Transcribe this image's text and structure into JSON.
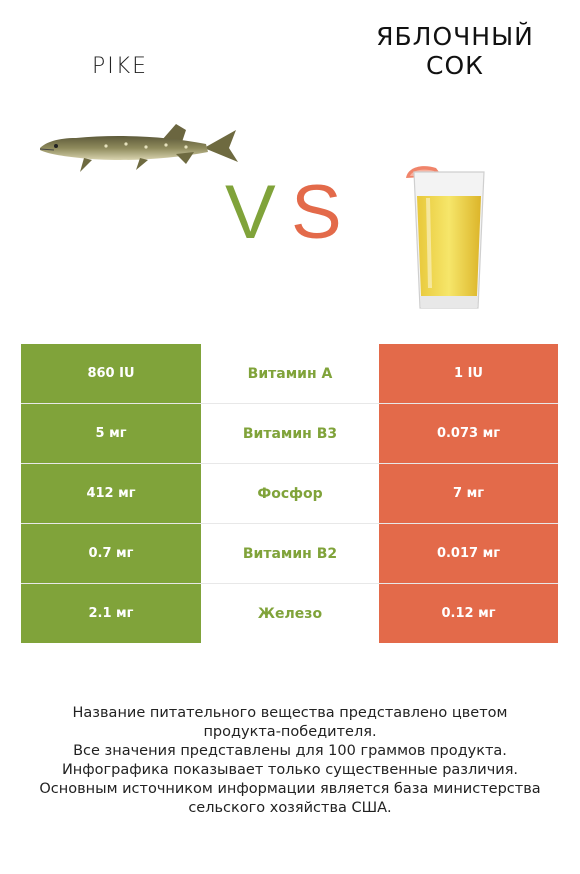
{
  "header": {
    "left_name": "PIKE",
    "right_name_line1": "ЯБЛОЧНЫЙ",
    "right_name_line2": "СОК",
    "vs_v": "V",
    "vs_s": "S"
  },
  "colors": {
    "left": "#80a33a",
    "right": "#e36a4a"
  },
  "images": {
    "left": "pike-fish-image",
    "right": "apple-juice-glass-image"
  },
  "table": {
    "rows": [
      {
        "left": "860 IU",
        "nutrient": "Витамин A",
        "right": "1 IU"
      },
      {
        "left": "5 мг",
        "nutrient": "Витамин B3",
        "right": "0.073 мг"
      },
      {
        "left": "412 мг",
        "nutrient": "Фосфор",
        "right": "7 мг"
      },
      {
        "left": "0.7 мг",
        "nutrient": "Витамин B2",
        "right": "0.017 мг"
      },
      {
        "left": "2.1 мг",
        "nutrient": "Железо",
        "right": "0.12 мг"
      }
    ]
  },
  "footer": {
    "line1": "Название питательного вещества представлено цветом",
    "line2": "продукта-победителя.",
    "line3": "Все значения представлены для 100 граммов продукта.",
    "line4": "Инфографика показывает только существенные различия.",
    "line5": "Основным источником информации является база министерства",
    "line6": "сельского хозяйства США."
  }
}
